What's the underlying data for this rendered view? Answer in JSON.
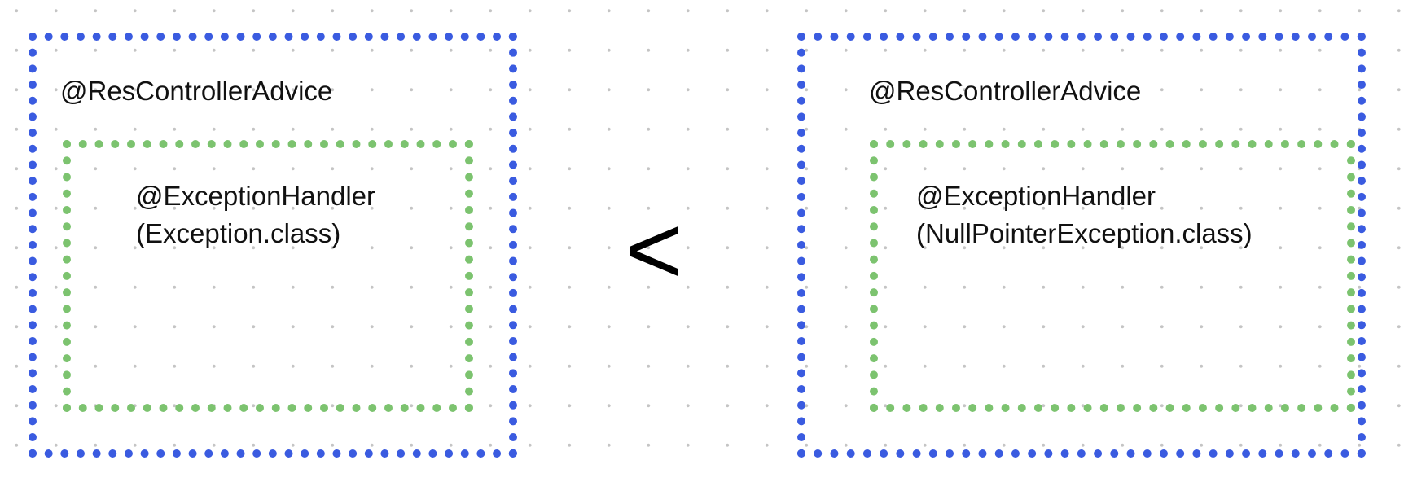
{
  "left": {
    "outer_label": "@ResControllerAdvice",
    "inner_label_line1": "@ExceptionHandler",
    "inner_label_line2": "(Exception.class)"
  },
  "comparator": "<",
  "right": {
    "outer_label": "@ResControllerAdvice",
    "inner_label_line1": "@ExceptionHandler",
    "inner_label_line2": "(NullPointerException.class)"
  },
  "colors": {
    "outer_border": "#3a5be0",
    "inner_border": "#7cc36f",
    "background_dots": "#c4c4c4"
  }
}
